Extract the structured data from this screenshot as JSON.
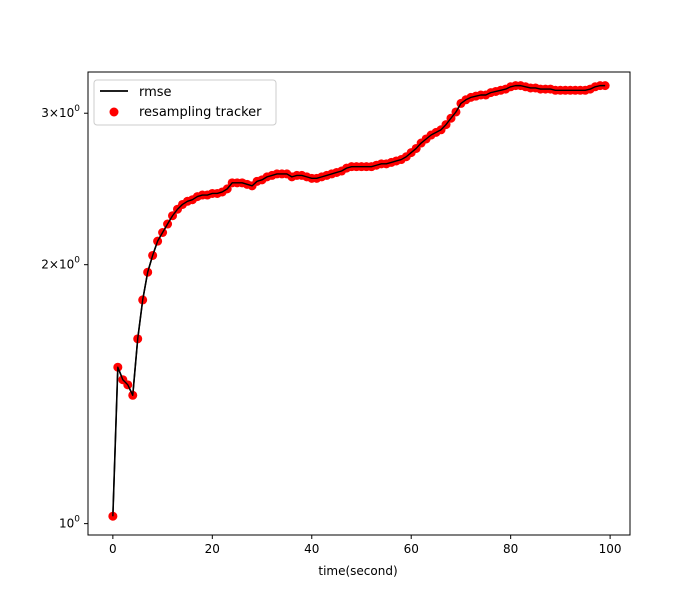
{
  "chart_data": {
    "type": "line",
    "xlabel": "time(second)",
    "ylabel": "",
    "xlim": [
      -5,
      104
    ],
    "ylim": [
      0.97,
      3.35
    ],
    "yscale": "log",
    "grid": false,
    "legend_position": "top-left",
    "x_ticks": [
      0,
      20,
      40,
      60,
      80,
      100
    ],
    "x_tick_labels": [
      "0",
      "20",
      "40",
      "60",
      "80",
      "100"
    ],
    "y_ticks": [
      {
        "value": 1,
        "base": "10",
        "exp": "0"
      },
      {
        "value": 2,
        "base": "2×10",
        "exp": "0"
      },
      {
        "value": 3,
        "base": "3×10",
        "exp": "0"
      }
    ],
    "series": [
      {
        "name": "rmse",
        "kind": "line",
        "color": "#000000",
        "x": [
          0,
          1,
          2,
          3,
          4,
          5,
          6,
          7,
          8,
          9,
          10,
          11,
          12,
          13,
          14,
          15,
          16,
          17,
          18,
          19,
          20,
          21,
          22,
          23,
          24,
          25,
          26,
          27,
          28,
          29,
          30,
          31,
          32,
          33,
          34,
          35,
          36,
          37,
          38,
          39,
          40,
          41,
          42,
          43,
          44,
          45,
          46,
          47,
          48,
          49,
          50,
          51,
          52,
          53,
          54,
          55,
          56,
          57,
          58,
          59,
          60,
          61,
          62,
          63,
          64,
          65,
          66,
          67,
          68,
          69,
          70,
          71,
          72,
          73,
          74,
          75,
          76,
          77,
          78,
          79,
          80,
          81,
          82,
          83,
          84,
          85,
          86,
          87,
          88,
          89,
          90,
          91,
          92,
          93,
          94,
          95,
          96,
          97,
          98,
          99
        ],
        "y": [
          1.02,
          1.52,
          1.47,
          1.45,
          1.41,
          1.64,
          1.82,
          1.96,
          2.05,
          2.13,
          2.18,
          2.23,
          2.28,
          2.32,
          2.35,
          2.37,
          2.38,
          2.4,
          2.41,
          2.41,
          2.42,
          2.42,
          2.43,
          2.45,
          2.49,
          2.49,
          2.49,
          2.48,
          2.47,
          2.5,
          2.51,
          2.53,
          2.54,
          2.55,
          2.55,
          2.55,
          2.53,
          2.54,
          2.54,
          2.53,
          2.52,
          2.52,
          2.53,
          2.54,
          2.55,
          2.56,
          2.57,
          2.59,
          2.6,
          2.6,
          2.6,
          2.6,
          2.6,
          2.61,
          2.62,
          2.62,
          2.63,
          2.64,
          2.65,
          2.67,
          2.7,
          2.73,
          2.77,
          2.8,
          2.83,
          2.85,
          2.87,
          2.91,
          2.96,
          3.01,
          3.08,
          3.11,
          3.13,
          3.14,
          3.15,
          3.15,
          3.17,
          3.18,
          3.19,
          3.2,
          3.22,
          3.23,
          3.23,
          3.22,
          3.21,
          3.21,
          3.2,
          3.2,
          3.2,
          3.19,
          3.19,
          3.19,
          3.19,
          3.19,
          3.19,
          3.19,
          3.2,
          3.22,
          3.23,
          3.23
        ]
      },
      {
        "name": "resampling tracker",
        "kind": "scatter",
        "color": "#ff0000",
        "x": [
          0,
          1,
          2,
          3,
          4,
          5,
          6,
          7,
          8,
          9,
          10,
          11,
          12,
          13,
          14,
          15,
          16,
          17,
          18,
          19,
          20,
          21,
          22,
          23,
          24,
          25,
          26,
          27,
          28,
          29,
          30,
          31,
          32,
          33,
          34,
          35,
          36,
          37,
          38,
          39,
          40,
          41,
          42,
          43,
          44,
          45,
          46,
          47,
          48,
          49,
          50,
          51,
          52,
          53,
          54,
          55,
          56,
          57,
          58,
          59,
          60,
          61,
          62,
          63,
          64,
          65,
          66,
          67,
          68,
          69,
          70,
          71,
          72,
          73,
          74,
          75,
          76,
          77,
          78,
          79,
          80,
          81,
          82,
          83,
          84,
          85,
          86,
          87,
          88,
          89,
          90,
          91,
          92,
          93,
          94,
          95,
          96,
          97,
          98,
          99
        ],
        "y": [
          1.02,
          1.52,
          1.47,
          1.45,
          1.41,
          1.64,
          1.82,
          1.96,
          2.05,
          2.13,
          2.18,
          2.23,
          2.28,
          2.32,
          2.35,
          2.37,
          2.38,
          2.4,
          2.41,
          2.41,
          2.42,
          2.42,
          2.43,
          2.45,
          2.49,
          2.49,
          2.49,
          2.48,
          2.47,
          2.5,
          2.51,
          2.53,
          2.54,
          2.55,
          2.55,
          2.55,
          2.53,
          2.54,
          2.54,
          2.53,
          2.52,
          2.52,
          2.53,
          2.54,
          2.55,
          2.56,
          2.57,
          2.59,
          2.6,
          2.6,
          2.6,
          2.6,
          2.6,
          2.61,
          2.62,
          2.62,
          2.63,
          2.64,
          2.65,
          2.67,
          2.7,
          2.73,
          2.77,
          2.8,
          2.83,
          2.85,
          2.87,
          2.91,
          2.96,
          3.01,
          3.08,
          3.11,
          3.13,
          3.14,
          3.15,
          3.15,
          3.17,
          3.18,
          3.19,
          3.2,
          3.22,
          3.23,
          3.23,
          3.22,
          3.21,
          3.21,
          3.2,
          3.2,
          3.2,
          3.19,
          3.19,
          3.19,
          3.19,
          3.19,
          3.19,
          3.19,
          3.2,
          3.22,
          3.23,
          3.23
        ]
      }
    ]
  }
}
